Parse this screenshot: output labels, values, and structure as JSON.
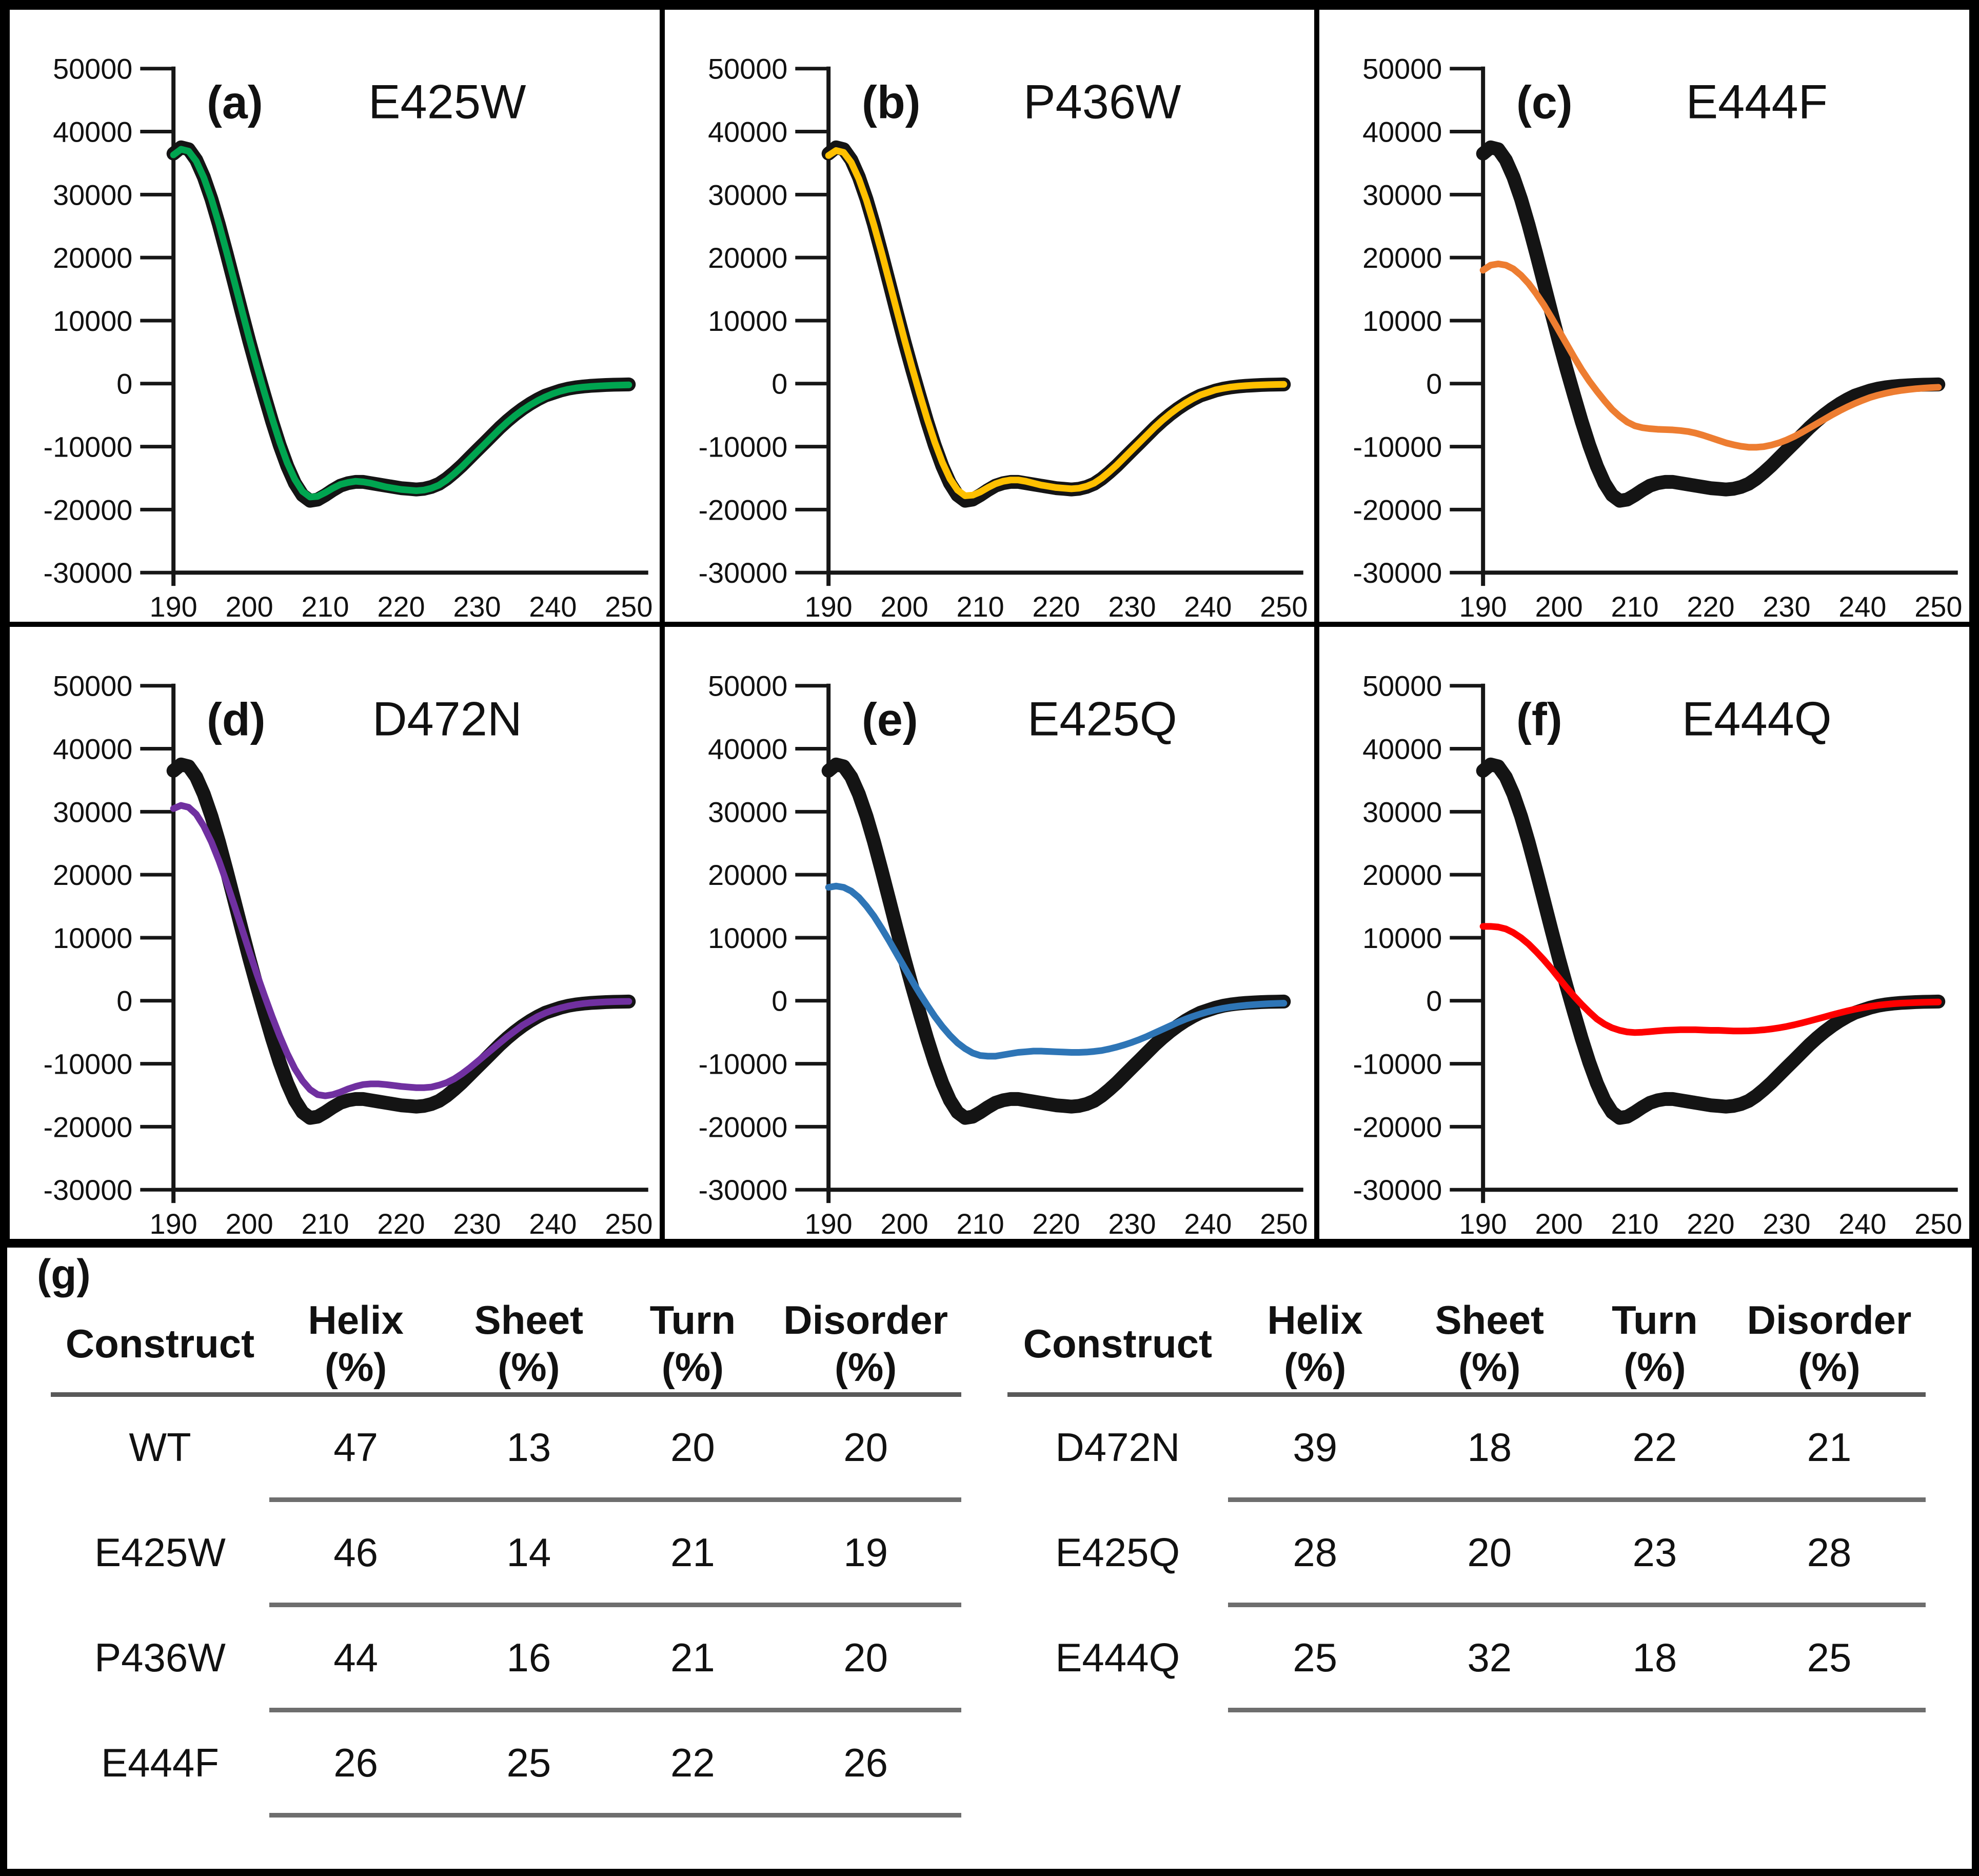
{
  "chart_data": {
    "type": "line",
    "xlim": [
      190,
      250
    ],
    "ylim": [
      -30000,
      50000
    ],
    "x_ticks": [
      190,
      200,
      210,
      220,
      230,
      240,
      250
    ],
    "y_ticks": [
      50000,
      40000,
      30000,
      20000,
      10000,
      0,
      -10000,
      -20000,
      -30000
    ],
    "grid": "off",
    "legend": "none",
    "x_nm": [
      190,
      191,
      192,
      193,
      194,
      195,
      196,
      197,
      198,
      199,
      200,
      201,
      202,
      203,
      204,
      205,
      206,
      207,
      208,
      209,
      210,
      211,
      212,
      213,
      214,
      215,
      216,
      217,
      218,
      219,
      220,
      221,
      222,
      223,
      224,
      225,
      226,
      227,
      228,
      229,
      230,
      231,
      232,
      233,
      234,
      235,
      236,
      237,
      238,
      239,
      240,
      241,
      242,
      243,
      244,
      245,
      246,
      247,
      248,
      249,
      250
    ],
    "wt": {
      "name": "WT",
      "color": "#141414",
      "stroke_width": 27,
      "y": [
        36500,
        37500,
        37200,
        35500,
        32800,
        29300,
        25200,
        20700,
        16000,
        11300,
        6700,
        2300,
        -1900,
        -6000,
        -9800,
        -13100,
        -15800,
        -17700,
        -18600,
        -18400,
        -17700,
        -16900,
        -16200,
        -15800,
        -15600,
        -15600,
        -15800,
        -16000,
        -16200,
        -16400,
        -16600,
        -16700,
        -16800,
        -16700,
        -16400,
        -15900,
        -15100,
        -14100,
        -13000,
        -11800,
        -10600,
        -9400,
        -8200,
        -7000,
        -5900,
        -4900,
        -4000,
        -3200,
        -2500,
        -1900,
        -1500,
        -1100,
        -800,
        -600,
        -450,
        -350,
        -280,
        -220,
        -180,
        -150,
        -130
      ]
    },
    "panels": [
      {
        "letter": "(a)",
        "title": "E425W",
        "color": "#00A550",
        "stroke_width": 13,
        "y": [
          36300,
          37200,
          36900,
          35300,
          32700,
          29300,
          25300,
          20900,
          16300,
          11700,
          7100,
          2700,
          -1500,
          -5500,
          -9300,
          -12600,
          -15200,
          -17100,
          -18000,
          -17900,
          -17300,
          -16600,
          -16000,
          -15700,
          -15500,
          -15600,
          -15800,
          -16100,
          -16400,
          -16600,
          -16800,
          -16900,
          -17000,
          -16900,
          -16600,
          -16100,
          -15300,
          -14300,
          -13200,
          -12000,
          -10800,
          -9600,
          -8400,
          -7200,
          -6100,
          -5100,
          -4200,
          -3400,
          -2700,
          -2100,
          -1600,
          -1200,
          -900,
          -700,
          -550,
          -450,
          -380,
          -320,
          -270,
          -230,
          -200
        ]
      },
      {
        "letter": "(b)",
        "title": "P436W",
        "color": "#FFC000",
        "stroke_width": 13,
        "y": [
          36200,
          37000,
          36700,
          35100,
          32500,
          29100,
          25100,
          20800,
          16200,
          11600,
          7000,
          2600,
          -1600,
          -5600,
          -9300,
          -12500,
          -15100,
          -16900,
          -17800,
          -17700,
          -17200,
          -16500,
          -15900,
          -15500,
          -15300,
          -15300,
          -15500,
          -15800,
          -16100,
          -16300,
          -16500,
          -16600,
          -16700,
          -16600,
          -16300,
          -15800,
          -15000,
          -14000,
          -12900,
          -11700,
          -10500,
          -9300,
          -8100,
          -6900,
          -5800,
          -4800,
          -3900,
          -3100,
          -2400,
          -1800,
          -1400,
          -1000,
          -750,
          -550,
          -420,
          -330,
          -260,
          -210,
          -170,
          -140,
          -120
        ]
      },
      {
        "letter": "(c)",
        "title": "E444F",
        "color": "#ED7D31",
        "stroke_width": 13,
        "y": [
          18000,
          18800,
          19000,
          18800,
          18200,
          17200,
          15900,
          14300,
          12500,
          10500,
          8400,
          6300,
          4200,
          2200,
          400,
          -1200,
          -2700,
          -4100,
          -5200,
          -6100,
          -6700,
          -7000,
          -7150,
          -7250,
          -7300,
          -7350,
          -7450,
          -7600,
          -7850,
          -8200,
          -8600,
          -9000,
          -9400,
          -9700,
          -9950,
          -10100,
          -10100,
          -10000,
          -9750,
          -9400,
          -8950,
          -8400,
          -7750,
          -7050,
          -6350,
          -5650,
          -4950,
          -4300,
          -3700,
          -3150,
          -2650,
          -2200,
          -1850,
          -1550,
          -1300,
          -1100,
          -950,
          -820,
          -720,
          -640,
          -580
        ]
      },
      {
        "letter": "(d)",
        "title": "D472N",
        "color": "#7030A0",
        "stroke_width": 13,
        "y": [
          30500,
          31000,
          30700,
          29600,
          27700,
          25200,
          22200,
          18800,
          15200,
          11500,
          7800,
          4200,
          800,
          -2500,
          -5600,
          -8400,
          -10800,
          -12700,
          -14100,
          -14900,
          -15100,
          -14900,
          -14500,
          -14000,
          -13600,
          -13300,
          -13200,
          -13200,
          -13300,
          -13450,
          -13600,
          -13700,
          -13800,
          -13800,
          -13700,
          -13400,
          -13000,
          -12400,
          -11600,
          -10700,
          -9700,
          -8700,
          -7700,
          -6700,
          -5700,
          -4800,
          -3900,
          -3200,
          -2500,
          -1950,
          -1500,
          -1150,
          -850,
          -620,
          -450,
          -330,
          -250,
          -190,
          -150,
          -120,
          -100
        ]
      },
      {
        "letter": "(e)",
        "title": "E425Q",
        "color": "#2E75B6",
        "stroke_width": 13,
        "y": [
          18000,
          18200,
          18000,
          17400,
          16400,
          15000,
          13400,
          11500,
          9500,
          7400,
          5300,
          3200,
          1200,
          -700,
          -2500,
          -4100,
          -5500,
          -6700,
          -7600,
          -8300,
          -8700,
          -8800,
          -8800,
          -8600,
          -8400,
          -8200,
          -8100,
          -8000,
          -8000,
          -8050,
          -8100,
          -8150,
          -8200,
          -8200,
          -8150,
          -8050,
          -7900,
          -7650,
          -7350,
          -7000,
          -6600,
          -6150,
          -5650,
          -5100,
          -4550,
          -4000,
          -3450,
          -2950,
          -2500,
          -2100,
          -1750,
          -1450,
          -1200,
          -1000,
          -850,
          -720,
          -620,
          -540,
          -480,
          -430,
          -400
        ]
      },
      {
        "letter": "(f)",
        "title": "E444Q",
        "color": "#FF0000",
        "stroke_width": 13,
        "y": [
          11800,
          11800,
          11700,
          11400,
          10800,
          10000,
          9000,
          7800,
          6500,
          5100,
          3600,
          2100,
          700,
          -600,
          -1800,
          -2900,
          -3700,
          -4300,
          -4700,
          -4950,
          -5050,
          -5000,
          -4900,
          -4800,
          -4700,
          -4650,
          -4600,
          -4600,
          -4600,
          -4650,
          -4700,
          -4700,
          -4750,
          -4800,
          -4800,
          -4780,
          -4720,
          -4620,
          -4480,
          -4300,
          -4080,
          -3820,
          -3530,
          -3220,
          -2900,
          -2570,
          -2240,
          -1920,
          -1620,
          -1350,
          -1110,
          -900,
          -730,
          -590,
          -480,
          -400,
          -340,
          -290,
          -250,
          -220,
          -200
        ]
      }
    ]
  },
  "tables": {
    "panel_letter": "(g)",
    "columns": [
      {
        "name": "Construct",
        "unit": ""
      },
      {
        "name": "Helix",
        "unit": "(%)"
      },
      {
        "name": "Sheet",
        "unit": "(%)"
      },
      {
        "name": "Turn",
        "unit": "(%)"
      },
      {
        "name": "Disorder",
        "unit": "(%)"
      }
    ],
    "left_rows": [
      [
        "WT",
        "47",
        "13",
        "20",
        "20"
      ],
      [
        "E425W",
        "46",
        "14",
        "21",
        "19"
      ],
      [
        "P436W",
        "44",
        "16",
        "21",
        "20"
      ],
      [
        "E444F",
        "26",
        "25",
        "22",
        "26"
      ]
    ],
    "right_rows": [
      [
        "D472N",
        "39",
        "18",
        "22",
        "21"
      ],
      [
        "E425Q",
        "28",
        "20",
        "23",
        "28"
      ],
      [
        "E444Q",
        "25",
        "32",
        "18",
        "25"
      ]
    ]
  }
}
